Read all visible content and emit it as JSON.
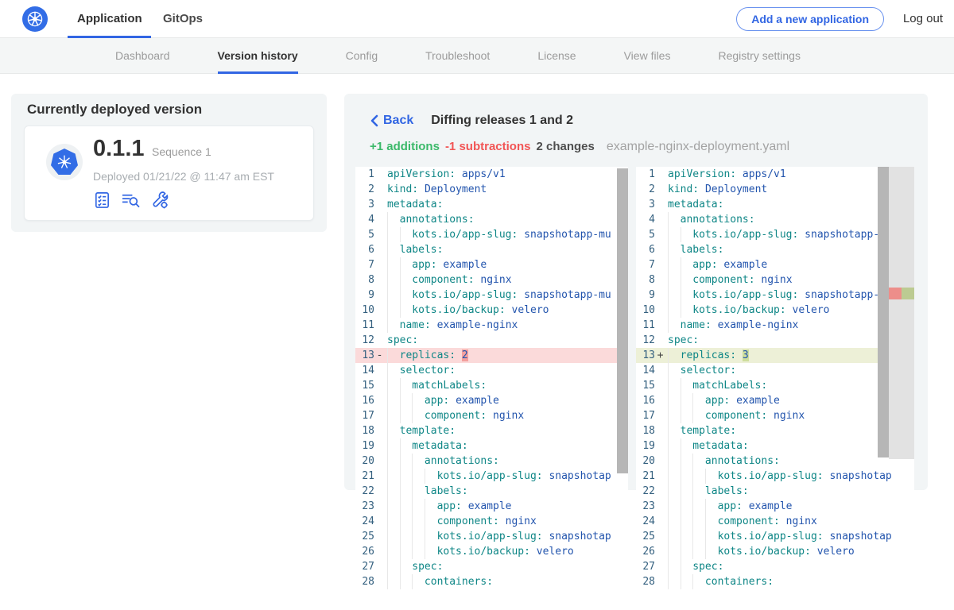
{
  "topnav": {
    "tabs": [
      {
        "label": "Application",
        "active": true
      },
      {
        "label": "GitOps",
        "active": false
      }
    ],
    "add_button_label": "Add a new application",
    "logout_label": "Log out"
  },
  "subnav": {
    "tabs": [
      "Dashboard",
      "Version history",
      "Config",
      "Troubleshoot",
      "License",
      "View files",
      "Registry settings"
    ],
    "active": "Version history"
  },
  "deployed_card": {
    "title": "Currently deployed version",
    "version": "0.1.1",
    "sequence": "Sequence 1",
    "deployed_text": "Deployed 01/21/22 @ 11:47 am EST",
    "icons": [
      "preflight-checks-icon",
      "view-logs-icon",
      "edit-config-icon"
    ]
  },
  "diff": {
    "back_label": "Back",
    "title": "Diffing releases 1 and 2",
    "additions": "+1 additions",
    "subtractions": "-1 subtractions",
    "changes": "2 changes",
    "filename": "example-nginx-deployment.yaml",
    "lines": [
      {
        "n": 1,
        "indent": 0,
        "key": "apiVersion",
        "value": "apps/v1"
      },
      {
        "n": 2,
        "indent": 0,
        "key": "kind",
        "value": "Deployment"
      },
      {
        "n": 3,
        "indent": 0,
        "key": "metadata",
        "value": ""
      },
      {
        "n": 4,
        "indent": 1,
        "key": "annotations",
        "value": ""
      },
      {
        "n": 5,
        "indent": 2,
        "key": "kots.io/app-slug",
        "value": "snapshotapp-mu"
      },
      {
        "n": 6,
        "indent": 1,
        "key": "labels",
        "value": ""
      },
      {
        "n": 7,
        "indent": 2,
        "key": "app",
        "value": "example"
      },
      {
        "n": 8,
        "indent": 2,
        "key": "component",
        "value": "nginx"
      },
      {
        "n": 9,
        "indent": 2,
        "key": "kots.io/app-slug",
        "value": "snapshotapp-mu"
      },
      {
        "n": 10,
        "indent": 2,
        "key": "kots.io/backup",
        "value": "velero"
      },
      {
        "n": 11,
        "indent": 1,
        "key": "name",
        "value": "example-nginx"
      },
      {
        "n": 12,
        "indent": 0,
        "key": "spec",
        "value": ""
      },
      {
        "n": 13,
        "indent": 1,
        "key": "replicas",
        "diff": true,
        "left_marker": "-",
        "left_value": "2",
        "right_marker": "+",
        "right_value": "3"
      },
      {
        "n": 14,
        "indent": 1,
        "key": "selector",
        "value": ""
      },
      {
        "n": 15,
        "indent": 2,
        "key": "matchLabels",
        "value": ""
      },
      {
        "n": 16,
        "indent": 3,
        "key": "app",
        "value": "example"
      },
      {
        "n": 17,
        "indent": 3,
        "key": "component",
        "value": "nginx"
      },
      {
        "n": 18,
        "indent": 1,
        "key": "template",
        "value": ""
      },
      {
        "n": 19,
        "indent": 2,
        "key": "metadata",
        "value": ""
      },
      {
        "n": 20,
        "indent": 3,
        "key": "annotations",
        "value": ""
      },
      {
        "n": 21,
        "indent": 4,
        "key": "kots.io/app-slug",
        "value": "snapshotap"
      },
      {
        "n": 22,
        "indent": 3,
        "key": "labels",
        "value": ""
      },
      {
        "n": 23,
        "indent": 4,
        "key": "app",
        "value": "example"
      },
      {
        "n": 24,
        "indent": 4,
        "key": "component",
        "value": "nginx"
      },
      {
        "n": 25,
        "indent": 4,
        "key": "kots.io/app-slug",
        "value": "snapshotap"
      },
      {
        "n": 26,
        "indent": 4,
        "key": "kots.io/backup",
        "value": "velero"
      },
      {
        "n": 27,
        "indent": 2,
        "key": "spec",
        "value": ""
      },
      {
        "n": 28,
        "indent": 3,
        "key": "containers",
        "value": ""
      }
    ]
  },
  "colors": {
    "accent_blue": "#3266e3",
    "kubernetes_blue": "#326de6",
    "addition_green": "#3cb96a",
    "subtraction_red": "#f25555",
    "removed_line_bg": "#fbdada",
    "removed_char_bg": "#f3a09e",
    "added_line_bg": "#edf0d7",
    "added_char_bg": "#cede9d",
    "yaml_key": "#0e8686",
    "yaml_value": "#2254ad"
  }
}
